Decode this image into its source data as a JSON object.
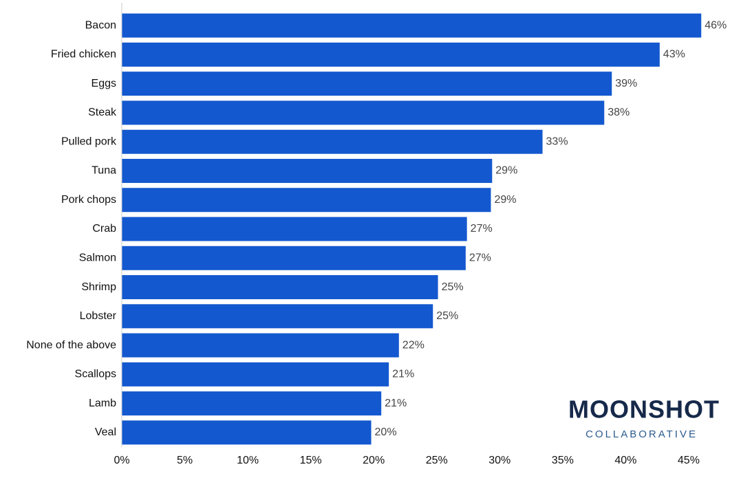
{
  "chart_data": {
    "type": "barh",
    "categories": [
      "Bacon",
      "Fried chicken",
      "Eggs",
      "Steak",
      "Pulled pork",
      "Tuna",
      "Pork chops",
      "Crab",
      "Salmon",
      "Shrimp",
      "Lobster",
      "None of the above",
      "Scallops",
      "Lamb",
      "Veal"
    ],
    "values": [
      46.0,
      42.7,
      38.9,
      38.3,
      33.4,
      29.4,
      29.3,
      27.4,
      27.3,
      25.1,
      24.7,
      22.0,
      21.2,
      20.6,
      19.8
    ],
    "value_labels": [
      "46%",
      "43%",
      "39%",
      "38%",
      "33%",
      "29%",
      "29%",
      "27%",
      "27%",
      "25%",
      "25%",
      "22%",
      "21%",
      "21%",
      "20%"
    ],
    "color": "#1358cf",
    "xlim": [
      0,
      48.5
    ],
    "xticks": [
      {
        "value": 0,
        "label": "0%"
      },
      {
        "value": 5,
        "label": "5%"
      },
      {
        "value": 10,
        "label": "10%"
      },
      {
        "value": 15,
        "label": "15%"
      },
      {
        "value": 20,
        "label": "20%"
      },
      {
        "value": 25,
        "label": "25%"
      },
      {
        "value": 30,
        "label": "30%"
      },
      {
        "value": 35,
        "label": "35%"
      },
      {
        "value": 40,
        "label": "40%"
      },
      {
        "value": 45,
        "label": "45%"
      }
    ],
    "grid": false
  },
  "logo": {
    "name": "MOONSHOT",
    "subtitle": "COLLABORATIVE"
  }
}
